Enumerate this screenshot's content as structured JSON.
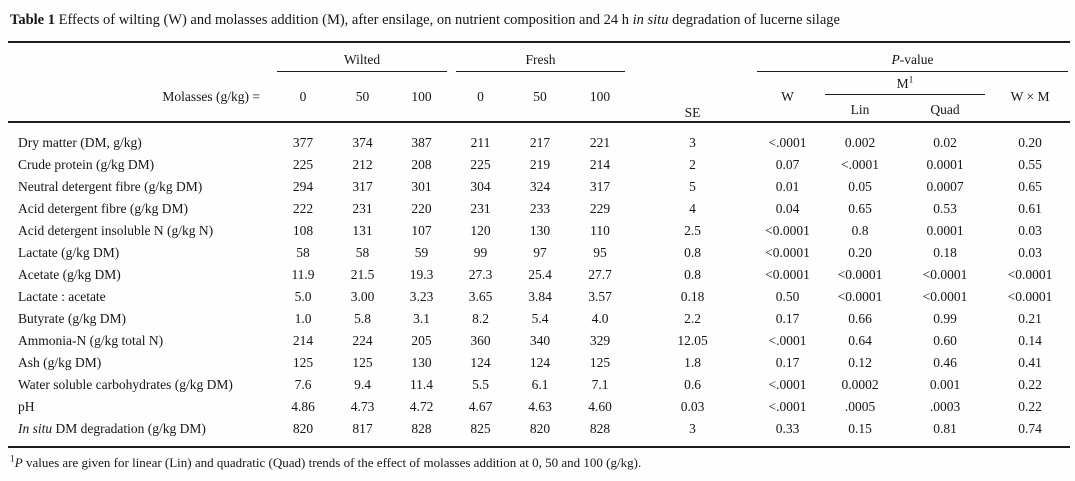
{
  "title": {
    "bold": "Table 1",
    "pre": " Effects of wilting (W) and molasses addition (M), after ensilage, on nutrient composition and 24 h ",
    "italic": "in situ",
    "post": " degradation of lucerne silage"
  },
  "table": {
    "header": {
      "molasses_label": "Molasses (g/kg) =",
      "group_wilted": "Wilted",
      "group_fresh": "Fresh",
      "pvalue_italic": "P",
      "pvalue_rest": "-value",
      "wilted_levels": [
        "0",
        "50",
        "100"
      ],
      "fresh_levels": [
        "0",
        "50",
        "100"
      ],
      "se": "SE",
      "w": "W",
      "m": "M",
      "m_sup": "1",
      "lin": "Lin",
      "quad": "Quad",
      "wxm": "W × M"
    },
    "rows": [
      {
        "label": "Dry matter (DM, g/kg)",
        "values": [
          "377",
          "374",
          "387",
          "211",
          "217",
          "221",
          "3",
          "<.0001",
          "0.002",
          "0.02",
          "0.20"
        ]
      },
      {
        "label": "Crude protein (g/kg DM)",
        "values": [
          "225",
          "212",
          "208",
          "225",
          "219",
          "214",
          "2",
          "0.07",
          "<.0001",
          "0.0001",
          "0.55"
        ]
      },
      {
        "label": "Neutral detergent fibre (g/kg DM)",
        "values": [
          "294",
          "317",
          "301",
          "304",
          "324",
          "317",
          "5",
          "0.01",
          "0.05",
          "0.0007",
          "0.65"
        ]
      },
      {
        "label": "Acid detergent fibre (g/kg DM)",
        "values": [
          "222",
          "231",
          "220",
          "231",
          "233",
          "229",
          "4",
          "0.04",
          "0.65",
          "0.53",
          "0.61"
        ]
      },
      {
        "label": "Acid detergent insoluble N (g/kg N)",
        "values": [
          "108",
          "131",
          "107",
          "120",
          "130",
          "110",
          "2.5",
          "<0.0001",
          "0.8",
          "0.0001",
          "0.03"
        ]
      },
      {
        "label": "Lactate (g/kg DM)",
        "values": [
          "58",
          "58",
          "59",
          "99",
          "97",
          "95",
          "0.8",
          "<0.0001",
          "0.20",
          "0.18",
          "0.03"
        ]
      },
      {
        "label": "Acetate (g/kg DM)",
        "values": [
          "11.9",
          "21.5",
          "19.3",
          "27.3",
          "25.4",
          "27.7",
          "0.8",
          "<0.0001",
          "<0.0001",
          "<0.0001",
          "<0.0001"
        ]
      },
      {
        "label": "Lactate : acetate",
        "values": [
          "5.0",
          "3.00",
          "3.23",
          "3.65",
          "3.84",
          "3.57",
          "0.18",
          "0.50",
          "<0.0001",
          "<0.0001",
          "<0.0001"
        ]
      },
      {
        "label": "Butyrate (g/kg DM)",
        "values": [
          "1.0",
          "5.8",
          "3.1",
          "8.2",
          "5.4",
          "4.0",
          "2.2",
          "0.17",
          "0.66",
          "0.99",
          "0.21"
        ]
      },
      {
        "label": "Ammonia-N (g/kg total N)",
        "values": [
          "214",
          "224",
          "205",
          "360",
          "340",
          "329",
          "12.05",
          "<.0001",
          "0.64",
          "0.60",
          "0.14"
        ]
      },
      {
        "label": "Ash (g/kg DM)",
        "values": [
          "125",
          "125",
          "130",
          "124",
          "124",
          "125",
          "1.8",
          "0.17",
          "0.12",
          "0.46",
          "0.41"
        ]
      },
      {
        "label": "Water soluble carbohydrates (g/kg DM)",
        "values": [
          "7.6",
          "9.4",
          "11.4",
          "5.5",
          "6.1",
          "7.1",
          "0.6",
          "<.0001",
          "0.0002",
          "0.001",
          "0.22"
        ]
      },
      {
        "label": "pH",
        "values": [
          "4.86",
          "4.73",
          "4.72",
          "4.67",
          "4.63",
          "4.60",
          "0.03",
          "<.0001",
          ".0005",
          ".0003",
          "0.22"
        ]
      },
      {
        "label_italic": "In situ",
        "label": " DM degradation (g/kg DM)",
        "values": [
          "820",
          "817",
          "828",
          "825",
          "820",
          "828",
          "3",
          "0.33",
          "0.15",
          "0.81",
          "0.74"
        ]
      }
    ]
  },
  "footnote": {
    "sup": "1",
    "italic": "P",
    "text": " values are given for linear (Lin) and quadratic (Quad) trends of the effect of molasses addition at 0, 50 and 100 (g/kg)."
  }
}
